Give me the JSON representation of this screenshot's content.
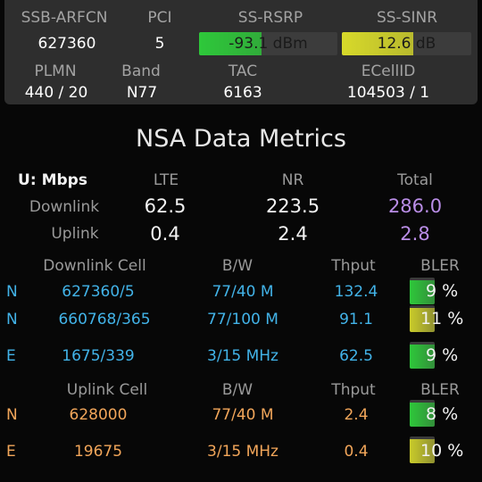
{
  "top": {
    "headers": [
      "SSB-ARFCN",
      "PCI",
      "SS-RSRP",
      "SS-SINR"
    ],
    "ssb_arfcn": "627360",
    "pci": "5",
    "rsrp": {
      "text": "-93.1 dBm",
      "level": 0.45,
      "color": "#2ec83a"
    },
    "sinr": {
      "text": "12.6 dB",
      "level": 0.55,
      "color": "#d7d92a"
    },
    "headers2": [
      "PLMN",
      "Band",
      "TAC",
      "ECellID"
    ],
    "plmn": "440 / 20",
    "band": "N77",
    "tac": "6163",
    "ecellid": "104503 / 1"
  },
  "title": "NSA Data Metrics",
  "rates": {
    "unit": "U: Mbps",
    "cols": [
      "LTE",
      "NR",
      "Total"
    ],
    "downlink_label": "Downlink",
    "uplink_label": "Uplink",
    "downlink": [
      "62.5",
      "223.5",
      "286.0"
    ],
    "uplink": [
      "0.4",
      "2.4",
      "2.8"
    ]
  },
  "downlink_cells": {
    "headers": [
      "Downlink Cell",
      "B/W",
      "Thput",
      "BLER"
    ],
    "rows": [
      {
        "tech": "N",
        "cell": "627360/5",
        "bw": "77/40 M",
        "thput": "132.4",
        "bler": "9 %",
        "bler_level": 0.9,
        "bler_color": "#2ec83a"
      },
      {
        "tech": "N",
        "cell": "660768/365",
        "bw": "77/100 M",
        "thput": "91.1",
        "bler": "11 %",
        "bler_level": 0.9,
        "bler_color": "#c9cb2a"
      },
      {
        "tech": "E",
        "cell": "1675/339",
        "bw": "3/15 MHz",
        "thput": "62.5",
        "bler": "9 %",
        "bler_level": 0.9,
        "bler_color": "#2ec83a"
      }
    ]
  },
  "uplink_cells": {
    "headers": [
      "Uplink Cell",
      "B/W",
      "Thput",
      "BLER"
    ],
    "rows": [
      {
        "tech": "N",
        "cell": "628000",
        "bw": "77/40 M",
        "thput": "2.4",
        "bler": "8 %",
        "bler_level": 0.9,
        "bler_color": "#2ec83a"
      },
      {
        "tech": "E",
        "cell": "19675",
        "bw": "3/15 MHz",
        "thput": "0.4",
        "bler": "10 %",
        "bler_level": 0.9,
        "bler_color": "#c9cb2a"
      }
    ]
  }
}
